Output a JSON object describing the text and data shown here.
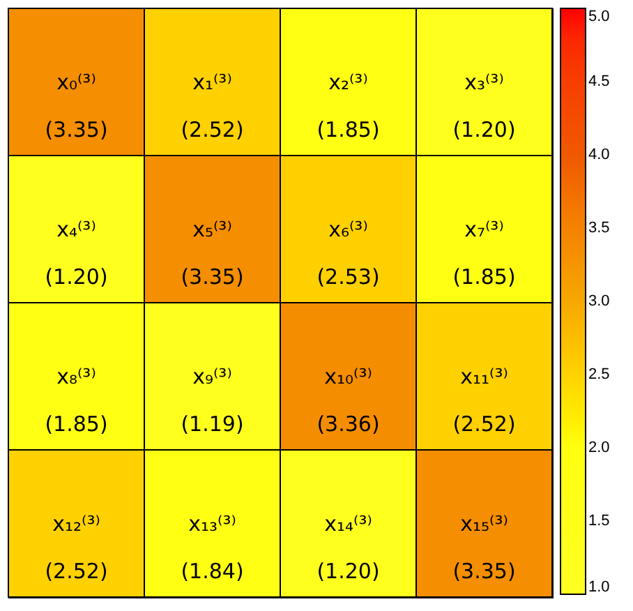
{
  "chart_data": {
    "type": "heatmap",
    "categories": [
      null,
      null,
      null,
      null
    ],
    "y_categories": [
      null,
      null,
      null,
      null
    ],
    "cells": [
      [
        3.35,
        2.52,
        1.85,
        1.2
      ],
      [
        1.2,
        3.35,
        2.53,
        1.85
      ],
      [
        1.85,
        1.19,
        3.36,
        2.52
      ],
      [
        2.52,
        1.84,
        1.2,
        3.35
      ]
    ],
    "cell_labels": [
      [
        "x₀⁽³⁾\n(3.35)",
        "x₁⁽³⁾\n(2.52)",
        "x₂⁽³⁾\n(1.85)",
        "x₃⁽³⁾\n(1.20)"
      ],
      [
        "x₄⁽³⁾\n(1.20)",
        "x₅⁽³⁾\n(3.35)",
        "x₆⁽³⁾\n(2.53)",
        "x₇⁽³⁾\n(1.85)"
      ],
      [
        "x₈⁽³⁾\n(1.85)",
        "x₉⁽³⁾\n(1.19)",
        "x₁₀⁽³⁾\n(3.36)",
        "x₁₁⁽³⁾\n(2.52)"
      ],
      [
        "x₁₂⁽³⁾\n(2.52)",
        "x₁₃⁽³⁾\n(1.84)",
        "x₁₄⁽³⁾\n(1.20)",
        "x₁₅⁽³⁾\n(3.35)"
      ]
    ],
    "clim": [
      1.0,
      5.0
    ],
    "cticks": [
      {
        "value": 1.0,
        "label": "1.0"
      },
      {
        "value": 1.5,
        "label": "1.5"
      },
      {
        "value": 2.0,
        "label": "2.0"
      },
      {
        "value": 2.5,
        "label": "2.5"
      },
      {
        "value": 3.0,
        "label": "3.0"
      },
      {
        "value": 3.5,
        "label": "3.5"
      },
      {
        "value": 4.0,
        "label": "4.0"
      },
      {
        "value": 4.5,
        "label": "4.5"
      },
      {
        "value": 5.0,
        "label": "5.0"
      }
    ],
    "tick_labels": false
  }
}
